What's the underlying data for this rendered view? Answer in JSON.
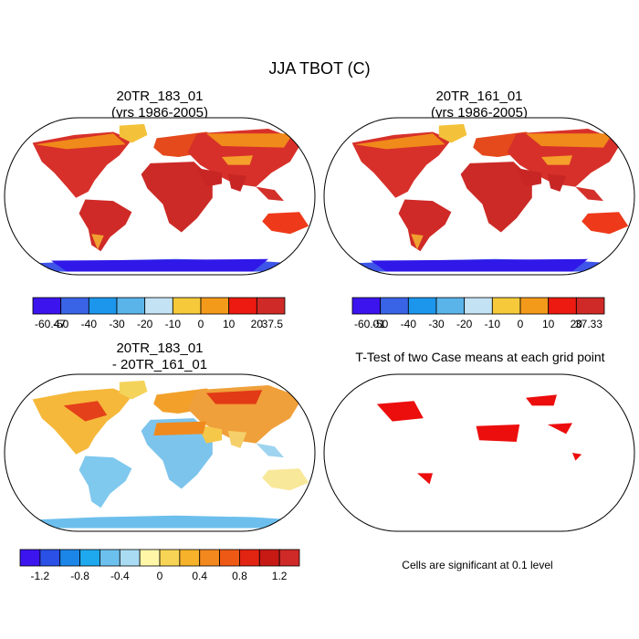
{
  "chart_data": {
    "type": "map",
    "title": "JJA TBOT (C)",
    "panels": [
      {
        "id": "case1",
        "title_line1": "20TR_183_01",
        "title_line2": "(yrs 1986-2005)",
        "colorbar": {
          "labels": [
            "-60.47",
            "-50",
            "-40",
            "-30",
            "-20",
            "-10",
            "0",
            "10",
            "20",
            "37.5"
          ],
          "colors": [
            "#3c14ee",
            "#3a64e6",
            "#1c96ec",
            "#5ab4ea",
            "#c3e3f4",
            "#f5c93a",
            "#f49a1a",
            "#ec1a10",
            "#cf2a27"
          ]
        },
        "field": "temperature"
      },
      {
        "id": "case2",
        "title_line1": "20TR_161_01",
        "title_line2": "(yrs 1986-2005)",
        "colorbar": {
          "labels": [
            "-60.01",
            "-50",
            "-40",
            "-30",
            "-20",
            "-10",
            "0",
            "10",
            "20",
            "37.33"
          ],
          "colors": [
            "#3c14ee",
            "#3a64e6",
            "#1c96ec",
            "#5ab4ea",
            "#c3e3f4",
            "#f5c93a",
            "#f49a1a",
            "#ec1a10",
            "#cf2a27"
          ]
        },
        "field": "temperature"
      },
      {
        "id": "diff",
        "title_line1": "20TR_183_01",
        "title_line2": "- 20TR_161_01",
        "colorbar": {
          "labels": [
            "-1.2",
            "-0.8",
            "-0.4",
            "0",
            "0.4",
            "0.8",
            "1.2"
          ],
          "colors": [
            "#3c14ee",
            "#2a50e6",
            "#1c86e8",
            "#1ea8ee",
            "#6cc0ee",
            "#a9dcf2",
            "#fff6a8",
            "#f7d455",
            "#f5b22a",
            "#f2881e",
            "#ee5a16",
            "#e22412",
            "#c71a14",
            "#cf2a27"
          ]
        },
        "field": "difference"
      },
      {
        "id": "ttest",
        "title_line1": "T-Test of two Case means at each grid point",
        "footnote": "Cells are significant at 0.1 level",
        "field": "significance",
        "significance_color": "#ec0d0d"
      }
    ]
  }
}
